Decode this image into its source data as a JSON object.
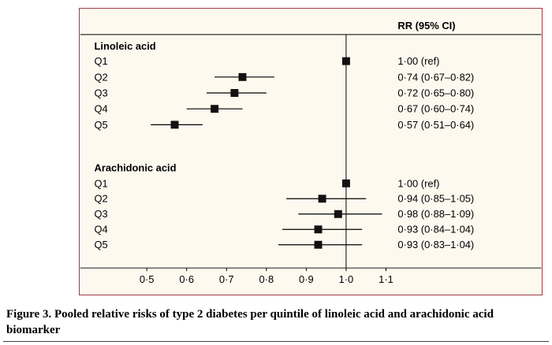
{
  "figure": {
    "caption": "Figure 3. Pooled relative risks of type 2 diabetes per quintile of linoleic acid and arachidonic acid biomarker"
  },
  "chart_data": {
    "type": "scatter",
    "subtype": "forest-plot",
    "title": "",
    "xlabel": "",
    "ylabel": "",
    "column_header": "RR (95% CI)",
    "x_ticks": [
      0.5,
      0.6,
      0.7,
      0.8,
      0.9,
      1.0,
      1.1
    ],
    "x_tick_labels": [
      "0·5",
      "0·6",
      "0·7",
      "0·8",
      "0·9",
      "1·0",
      "1·1"
    ],
    "xlim": [
      0.42,
      1.18
    ],
    "reference_line": 1.0,
    "grid": false,
    "legend_position": "none",
    "groups": [
      {
        "name": "Linoleic acid",
        "rows": [
          {
            "label": "Q1",
            "rr": 1.0,
            "lo": null,
            "hi": null,
            "text": "1·00 (ref)"
          },
          {
            "label": "Q2",
            "rr": 0.74,
            "lo": 0.67,
            "hi": 0.82,
            "text": "0·74 (0·67–0·82)"
          },
          {
            "label": "Q3",
            "rr": 0.72,
            "lo": 0.65,
            "hi": 0.8,
            "text": "0·72 (0·65–0·80)"
          },
          {
            "label": "Q4",
            "rr": 0.67,
            "lo": 0.6,
            "hi": 0.74,
            "text": "0·67 (0·60–0·74)"
          },
          {
            "label": "Q5",
            "rr": 0.57,
            "lo": 0.51,
            "hi": 0.64,
            "text": "0·57 (0·51–0·64)"
          }
        ]
      },
      {
        "name": "Arachidonic acid",
        "rows": [
          {
            "label": "Q1",
            "rr": 1.0,
            "lo": null,
            "hi": null,
            "text": "1·00 (ref)"
          },
          {
            "label": "Q2",
            "rr": 0.94,
            "lo": 0.85,
            "hi": 1.05,
            "text": "0·94 (0·85–1·05)"
          },
          {
            "label": "Q3",
            "rr": 0.98,
            "lo": 0.88,
            "hi": 1.09,
            "text": "0·98 (0·88–1·09)"
          },
          {
            "label": "Q4",
            "rr": 0.93,
            "lo": 0.84,
            "hi": 1.04,
            "text": "0·93 (0·84–1·04)"
          },
          {
            "label": "Q5",
            "rr": 0.93,
            "lo": 0.83,
            "hi": 1.04,
            "text": "0·93 (0·83–1·04)"
          }
        ]
      }
    ]
  },
  "colors": {
    "frame_border": "#a23b3c",
    "plot_background": "#fdf9ef",
    "marker": "#111111",
    "line": "#000000",
    "text": "#000000"
  }
}
